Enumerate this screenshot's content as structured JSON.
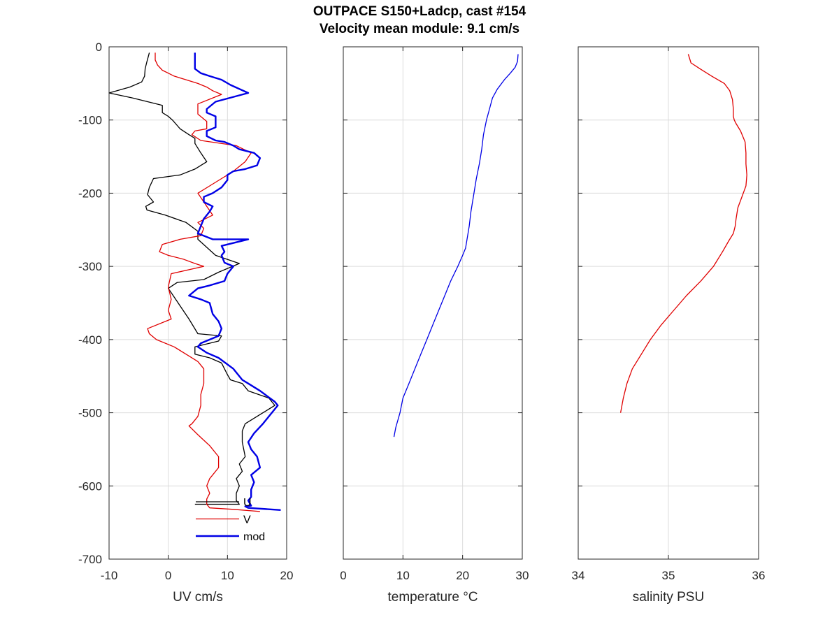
{
  "figure": {
    "title_line1": "OUTPACE S150+Ladcp, cast #154",
    "title_line2": "Velocity mean module:  9.1 cm/s"
  },
  "chart_data": [
    {
      "type": "line",
      "xlabel": "UV cm/s",
      "ylabel": "",
      "xlim": [
        -10,
        20
      ],
      "ylim": [
        -700,
        0
      ],
      "xticks": [
        -10,
        0,
        10,
        20
      ],
      "yticks": [
        -700,
        -600,
        -500,
        -400,
        -300,
        -200,
        -100,
        0
      ],
      "grid": true,
      "legend": {
        "placement": "bottom-right",
        "entries": [
          "U",
          "V",
          "mod"
        ]
      },
      "series": [
        {
          "name": "U",
          "color": "#000000",
          "width": 1.3,
          "x": [
            -3.2,
            -3.6,
            -3.9,
            -4.0,
            -4.5,
            -6.5,
            -10.0,
            -6.0,
            -1.0,
            -1.0,
            0.0,
            0.7,
            2.0,
            3.5,
            4.5,
            4.5,
            5.5,
            6.5,
            4.5,
            2.0,
            -2.5,
            -3.2,
            -3.5,
            -2.5,
            -3.8,
            -3.6,
            -0.5,
            3.0,
            5.0,
            5.0,
            8.0,
            12.0,
            8.5,
            6.0,
            1.5,
            0.0,
            1.5,
            3.5,
            5.0,
            9.0,
            8.5,
            4.5,
            4.5,
            7.0,
            9.0,
            10.0,
            10.5,
            12.5,
            13.5,
            17.0,
            18.0,
            16.0,
            13.0,
            12.5,
            12.5,
            13.0,
            12.0,
            12.5,
            11.5,
            12.0,
            11.5,
            11.5,
            12.0,
            4.5
          ],
          "y": [
            -8,
            -20,
            -30,
            -40,
            -48,
            -55,
            -63,
            -70,
            -80,
            -90,
            -95,
            -100,
            -112,
            -120,
            -125,
            -132,
            -145,
            -157,
            -167,
            -175,
            -180,
            -192,
            -202,
            -212,
            -218,
            -223,
            -230,
            -240,
            -252,
            -263,
            -285,
            -296,
            -308,
            -318,
            -322,
            -330,
            -348,
            -372,
            -392,
            -395,
            -402,
            -410,
            -420,
            -425,
            -432,
            -448,
            -455,
            -460,
            -470,
            -480,
            -490,
            -500,
            -515,
            -525,
            -540,
            -560,
            -570,
            -580,
            -590,
            -600,
            -610,
            -620,
            -625,
            -625
          ]
        },
        {
          "name": "V",
          "color": "#e00000",
          "width": 1.3,
          "x": [
            -2.2,
            -2.2,
            -1.8,
            -1.0,
            0.0,
            1.0,
            3.0,
            5.0,
            6.5,
            7.5,
            9.0,
            5.0,
            5.0,
            6.5,
            6.5,
            4.5,
            4.0,
            5.5,
            11.5,
            14.0,
            13.0,
            11.0,
            9.0,
            7.0,
            5.0,
            6.0,
            7.5,
            5.0,
            6.0,
            5.5,
            2.0,
            -1.0,
            -1.5,
            0.0,
            2.5,
            4.5,
            6.0,
            0.5,
            0.0,
            0.5,
            0.0,
            0.5,
            -3.5,
            -3.2,
            -2.0,
            1.0,
            3.0,
            5.0,
            6.0,
            6.0,
            5.5,
            5.5,
            5.0,
            4.0,
            3.5,
            5.0,
            7.0,
            8.5,
            8.5,
            7.0,
            6.5,
            7.0,
            6.5,
            6.5,
            7.0,
            11.0,
            15.5
          ],
          "y": [
            -8,
            -18,
            -25,
            -32,
            -36,
            -40,
            -45,
            -50,
            -55,
            -60,
            -65,
            -78,
            -92,
            -102,
            -112,
            -115,
            -120,
            -128,
            -135,
            -145,
            -157,
            -170,
            -180,
            -190,
            -200,
            -212,
            -230,
            -240,
            -248,
            -258,
            -263,
            -270,
            -280,
            -285,
            -290,
            -296,
            -300,
            -310,
            -328,
            -345,
            -360,
            -372,
            -385,
            -392,
            -400,
            -410,
            -420,
            -430,
            -440,
            -460,
            -475,
            -490,
            -505,
            -515,
            -518,
            -530,
            -545,
            -560,
            -575,
            -590,
            -600,
            -610,
            -618,
            -625,
            -630,
            -632,
            -635
          ]
        },
        {
          "name": "mod",
          "color": "#0000e6",
          "width": 2.4,
          "x": [
            4.5,
            4.5,
            4.5,
            5.5,
            7.0,
            9.0,
            10.5,
            13.5,
            8.0,
            6.5,
            6.5,
            8.0,
            8.0,
            8.0,
            6.5,
            6.5,
            8.0,
            9.5,
            11.0,
            12.0,
            14.5,
            15.5,
            15.0,
            13.0,
            11.0,
            10.0,
            10.0,
            9.0,
            7.5,
            6.0,
            6.0,
            7.5,
            7.0,
            6.0,
            5.5,
            5.0,
            7.5,
            13.5,
            9.0,
            9.5,
            9.0,
            9.5,
            11.0,
            10.0,
            9.5,
            7.0,
            5.0,
            3.5,
            5.5,
            7.0,
            7.5,
            8.5,
            9.0,
            8.5,
            5.5,
            5.0,
            6.5,
            8.5,
            11.0,
            12.5,
            13.5,
            15.5,
            18.0,
            18.5,
            17.0,
            16.0,
            14.5,
            13.5,
            14.0,
            15.0,
            15.5,
            14.0,
            14.5,
            14.0,
            14.0,
            13.5,
            14.0,
            13.0,
            13.5,
            19.0
          ],
          "y": [
            -8,
            -20,
            -30,
            -36,
            -40,
            -45,
            -52,
            -63,
            -75,
            -85,
            -90,
            -95,
            -100,
            -110,
            -115,
            -122,
            -128,
            -130,
            -135,
            -140,
            -145,
            -152,
            -162,
            -167,
            -170,
            -175,
            -182,
            -192,
            -200,
            -205,
            -212,
            -218,
            -225,
            -235,
            -245,
            -255,
            -263,
            -263,
            -272,
            -280,
            -285,
            -295,
            -300,
            -310,
            -320,
            -326,
            -330,
            -340,
            -345,
            -350,
            -365,
            -375,
            -385,
            -395,
            -405,
            -410,
            -418,
            -425,
            -440,
            -455,
            -460,
            -470,
            -485,
            -490,
            -505,
            -515,
            -528,
            -540,
            -550,
            -560,
            -575,
            -585,
            -595,
            -605,
            -615,
            -620,
            -627,
            -628,
            -630,
            -633
          ]
        }
      ]
    },
    {
      "type": "line",
      "xlabel": "temperature °C",
      "ylabel": "",
      "xlim": [
        0,
        30
      ],
      "ylim": [
        -700,
        0
      ],
      "xticks": [
        0,
        10,
        20,
        30
      ],
      "yticks": [
        -700,
        -600,
        -500,
        -400,
        -300,
        -200,
        -100,
        0
      ],
      "grid": true,
      "series": [
        {
          "name": "",
          "color": "#0000e6",
          "width": 1.3,
          "x": [
            29.3,
            29.2,
            28.8,
            28.0,
            27.0,
            25.8,
            25.0,
            24.5,
            24.0,
            23.5,
            23.2,
            22.8,
            22.3,
            21.9,
            21.4,
            21.1,
            20.8,
            20.5,
            20.0,
            19.2,
            18.0,
            17.0,
            16.0,
            15.0,
            14.0,
            13.0,
            12.0,
            11.0,
            10.0,
            9.5,
            8.8,
            8.5
          ],
          "y": [
            -10,
            -20,
            -28,
            -36,
            -45,
            -58,
            -70,
            -85,
            -100,
            -120,
            -140,
            -160,
            -180,
            -200,
            -225,
            -245,
            -260,
            -275,
            -285,
            -300,
            -320,
            -340,
            -360,
            -380,
            -400,
            -420,
            -440,
            -460,
            -480,
            -500,
            -520,
            -533
          ]
        }
      ]
    },
    {
      "type": "line",
      "xlabel": "salinity PSU",
      "ylabel": "",
      "xlim": [
        34,
        36
      ],
      "ylim": [
        -700,
        0
      ],
      "xticks": [
        34,
        35,
        36
      ],
      "yticks": [
        -700,
        -600,
        -500,
        -400,
        -300,
        -200,
        -100,
        0
      ],
      "grid": true,
      "series": [
        {
          "name": "",
          "color": "#e00000",
          "width": 1.3,
          "x": [
            35.22,
            35.25,
            35.35,
            35.48,
            35.62,
            35.68,
            35.71,
            35.72,
            35.72,
            35.73,
            35.75,
            35.8,
            35.85,
            35.86,
            35.86,
            35.87,
            35.86,
            35.83,
            35.8,
            35.77,
            35.75,
            35.74,
            35.72,
            35.67,
            35.6,
            35.5,
            35.36,
            35.2,
            35.06,
            34.92,
            34.8,
            34.7,
            34.6,
            34.54,
            34.5,
            34.47
          ],
          "y": [
            -10,
            -22,
            -30,
            -40,
            -50,
            -60,
            -72,
            -85,
            -95,
            -100,
            -105,
            -115,
            -130,
            -145,
            -160,
            -175,
            -190,
            -200,
            -210,
            -220,
            -235,
            -245,
            -255,
            -265,
            -280,
            -300,
            -320,
            -340,
            -360,
            -380,
            -400,
            -420,
            -440,
            -460,
            -480,
            -500
          ]
        }
      ]
    }
  ]
}
